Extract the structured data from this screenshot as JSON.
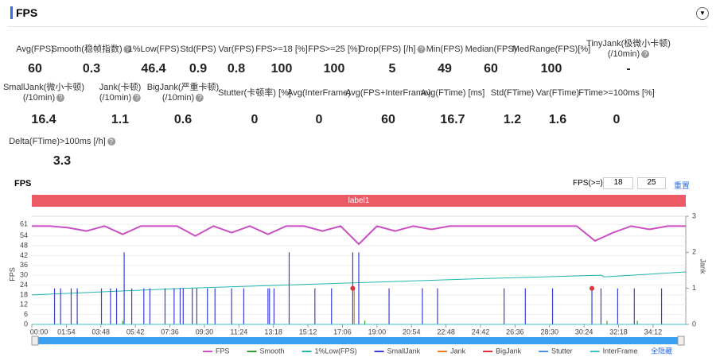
{
  "header": {
    "title": "FPS"
  },
  "stats": [
    [
      {
        "label": [
          "Avg(FPS)"
        ],
        "value": 60
      },
      {
        "label": [
          "Smooth(稳帧指数)"
        ],
        "value": 0.3,
        "help": true
      },
      {
        "label": [
          "1%Low(FPS)"
        ],
        "value": 46.4
      },
      {
        "label": [
          "Std(FPS)"
        ],
        "value": 0.9
      },
      {
        "label": [
          "Var(FPS)"
        ],
        "value": 0.8
      },
      {
        "label": [
          "FPS>=18 [%]"
        ],
        "value": 100
      },
      {
        "label": [
          "FPS>=25 [%]"
        ],
        "value": 100
      },
      {
        "label": [
          "Drop(FPS) [/h]"
        ],
        "value": 5,
        "help": true
      },
      {
        "label": [
          "Min(FPS)"
        ],
        "value": 49
      },
      {
        "label": [
          "Median(FPS)"
        ],
        "value": 60
      },
      {
        "label": [
          "MedRange(FPS)[%]"
        ],
        "value": 100
      },
      {
        "label": [
          "TinyJank(极微小卡顿)",
          "(/10min)"
        ],
        "value": "-",
        "help": true
      }
    ],
    [
      {
        "label": [
          "SmallJank(微小卡顿)",
          "(/10min)"
        ],
        "value": 16.4,
        "help": true
      },
      {
        "label": [
          "Jank(卡顿)",
          "(/10min)"
        ],
        "value": 1.1,
        "help": true
      },
      {
        "label": [
          "BigJank(严重卡顿)",
          "(/10min)"
        ],
        "value": 0.6,
        "help": true
      },
      {
        "label": [
          "Stutter(卡顿率) [%]"
        ],
        "value": 0
      },
      {
        "label": [
          "Avg(InterFrame)"
        ],
        "value": 0
      },
      {
        "label": [
          "Avg(FPS+InterFrame)"
        ],
        "value": 60
      },
      {
        "label": [
          "Avg(FTime) [ms]"
        ],
        "value": 16.7
      },
      {
        "label": [
          "Std(FTime)"
        ],
        "value": 1.2
      },
      {
        "label": [
          "Var(FTime)"
        ],
        "value": 1.6
      },
      {
        "label": [
          "FTime>=100ms [%]"
        ],
        "value": 0
      }
    ],
    [
      {
        "label": [
          "Delta(FTime)>100ms [/h]"
        ],
        "value": 3.3,
        "help": true
      }
    ]
  ],
  "controls": {
    "chart_title": "FPS",
    "threshold_label": "FPS(>=)",
    "thresholds": [
      18,
      25
    ],
    "reset": "重置",
    "hide_all": "全隐藏",
    "band_label": "label1"
  },
  "chart_data": {
    "type": "line",
    "ylabel": "FPS",
    "y2label": "Jank",
    "xlim": [
      0,
      2160
    ],
    "ylim": [
      0,
      66
    ],
    "y2lim": [
      0,
      3
    ],
    "grid": true,
    "xticks": [
      {
        "value": 0,
        "label": "00:00"
      },
      {
        "value": 114,
        "label": "01:54"
      },
      {
        "value": 228,
        "label": "03:48"
      },
      {
        "value": 342,
        "label": "05:42"
      },
      {
        "value": 456,
        "label": "07:36"
      },
      {
        "value": 570,
        "label": "09:30"
      },
      {
        "value": 684,
        "label": "11:24"
      },
      {
        "value": 798,
        "label": "13:18"
      },
      {
        "value": 912,
        "label": "15:12"
      },
      {
        "value": 1026,
        "label": "17:06"
      },
      {
        "value": 1140,
        "label": "19:00"
      },
      {
        "value": 1254,
        "label": "20:54"
      },
      {
        "value": 1368,
        "label": "22:48"
      },
      {
        "value": 1482,
        "label": "24:42"
      },
      {
        "value": 1596,
        "label": "26:36"
      },
      {
        "value": 1710,
        "label": "28:30"
      },
      {
        "value": 1824,
        "label": "30:24"
      },
      {
        "value": 1938,
        "label": "32:18"
      },
      {
        "value": 2052,
        "label": "34:12"
      }
    ],
    "yticks": [
      0,
      6,
      12,
      18,
      24,
      30,
      36,
      42,
      48,
      54,
      61
    ],
    "y2ticks": [
      0,
      1,
      2,
      3
    ],
    "series": [
      {
        "name": "FPS",
        "color": "#c94fc3",
        "type": "line",
        "x": [
          0,
          60,
          120,
          180,
          240,
          300,
          360,
          420,
          480,
          540,
          600,
          660,
          720,
          780,
          840,
          900,
          960,
          1020,
          1080,
          1140,
          1200,
          1260,
          1320,
          1380,
          1440,
          1500,
          1560,
          1620,
          1680,
          1740,
          1800,
          1860,
          1920,
          1980,
          2040,
          2100,
          2160
        ],
        "values": [
          60,
          60,
          59,
          57,
          60,
          55,
          60,
          60,
          60,
          54,
          60,
          56,
          60,
          55,
          60,
          60,
          57,
          60,
          49,
          60,
          57,
          60,
          58,
          60,
          60,
          60,
          60,
          60,
          60,
          60,
          60,
          51,
          56,
          60,
          58,
          60,
          60
        ]
      },
      {
        "name": "Smooth",
        "color": "#2ca02c",
        "type": "bar",
        "axis": "y2",
        "x": [
          150,
          300,
          700,
          1100,
          1900,
          2000
        ],
        "values": [
          0.1,
          0.1,
          0.1,
          0.1,
          0.1,
          0.1
        ]
      },
      {
        "name": "1%Low(FPS)",
        "color": "#22b5b0",
        "type": "line",
        "x": [
          0,
          500,
          1000,
          1500,
          1880,
          1890,
          2160
        ],
        "values": [
          18,
          22,
          25,
          28,
          30,
          29,
          32
        ]
      },
      {
        "name": "SmallJank",
        "color": "#3a3fd6",
        "type": "bar",
        "axis": "y2",
        "x": [
          75,
          95,
          130,
          150,
          230,
          260,
          280,
          305,
          330,
          370,
          390,
          440,
          470,
          490,
          500,
          530,
          545,
          580,
          605,
          660,
          700,
          780,
          785,
          800,
          850,
          935,
          990,
          1060,
          1080,
          1180,
          1290,
          1340,
          1560,
          1630,
          1720,
          1850,
          1880,
          1935,
          1990,
          2080
        ],
        "values": [
          1,
          1,
          1,
          1,
          1,
          1,
          1,
          2,
          1,
          1,
          1,
          1,
          1,
          1,
          1,
          1,
          1,
          1,
          1,
          1,
          1,
          1,
          1,
          1,
          2,
          1,
          1,
          2,
          2,
          1,
          1,
          1,
          1,
          1,
          1,
          1,
          1,
          1,
          1,
          1
        ]
      },
      {
        "name": "Jank",
        "color": "#f07c20",
        "type": "bar",
        "axis": "y2",
        "x": [
          1065
        ],
        "values": [
          1
        ]
      },
      {
        "name": "BigJank",
        "color": "#e0303a",
        "type": "scatter",
        "axis": "y2",
        "x": [
          1060,
          1850
        ],
        "values": [
          1,
          1
        ]
      },
      {
        "name": "Stutter",
        "color": "#4a90e2",
        "type": "line",
        "axis": "y2",
        "x": [
          0,
          2160
        ],
        "values": [
          0,
          0
        ]
      },
      {
        "name": "InterFrame",
        "color": "#3cc7c7",
        "type": "line",
        "axis": "y2",
        "x": [
          0,
          2160
        ],
        "values": [
          0,
          0
        ]
      }
    ]
  }
}
